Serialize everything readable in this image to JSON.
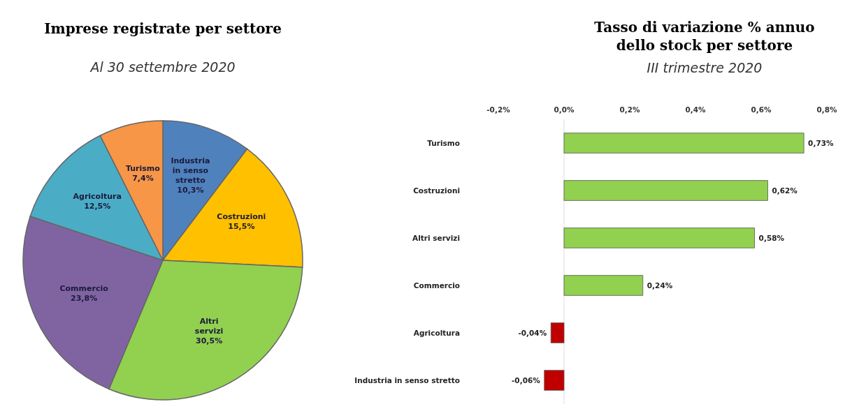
{
  "chart_data": [
    {
      "type": "pie",
      "title": "Imprese registrate per settore",
      "subtitle": "Al 30 settembre 2020",
      "categories": [
        "Industria in senso stretto",
        "Costruzioni",
        "Altri servizi",
        "Commercio",
        "Agricoltura",
        "Turismo"
      ],
      "values": [
        10.3,
        15.5,
        30.5,
        23.8,
        12.5,
        7.4
      ],
      "colors": [
        "#4f81bd",
        "#ffc000",
        "#92d050",
        "#8064a2",
        "#4bacc6",
        "#f79646"
      ],
      "value_labels": [
        "10,3%",
        "15,5%",
        "30,5%",
        "23,8%",
        "12,5%",
        "7,4%"
      ]
    },
    {
      "type": "bar",
      "orientation": "horizontal",
      "title": "Tasso di variazione % annuo dello stock per settore",
      "subtitle": "III trimestre 2020",
      "categories": [
        "Turismo",
        "Costruzioni",
        "Altri servizi",
        "Commercio",
        "Agricoltura",
        "Industria in senso stretto"
      ],
      "values": [
        0.73,
        0.62,
        0.58,
        0.24,
        -0.04,
        -0.06
      ],
      "colors": [
        "#92d050",
        "#92d050",
        "#92d050",
        "#92d050",
        "#c00000",
        "#c00000"
      ],
      "value_labels": [
        "0,73%",
        "0,62%",
        "0,58%",
        "0,24%",
        "-0,04%",
        "-0,06%"
      ],
      "xlim": [
        -0.2,
        0.8
      ],
      "xticks": [
        {
          "value": -0.2,
          "label": "-0,2%"
        },
        {
          "value": 0,
          "label": "0,0%"
        },
        {
          "value": 0.2,
          "label": "0,2%"
        },
        {
          "value": 0.4,
          "label": "0,4%"
        },
        {
          "value": 0.6,
          "label": "0,6%"
        },
        {
          "value": 0.8,
          "label": "0,8%"
        }
      ]
    }
  ]
}
